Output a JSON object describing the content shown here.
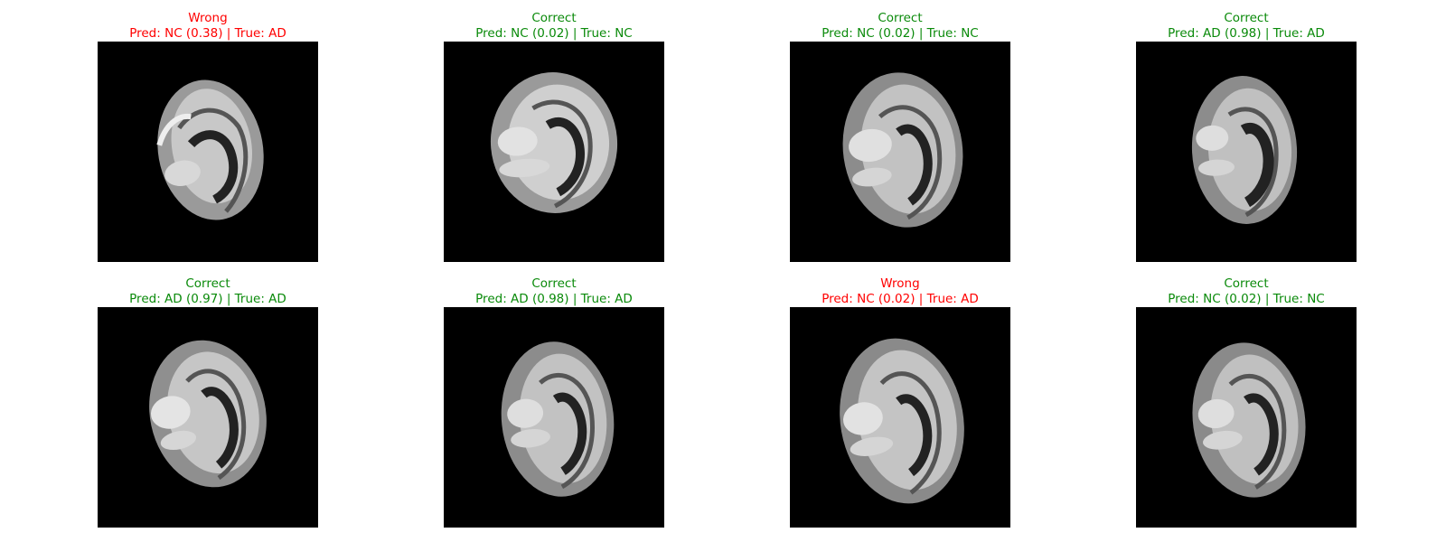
{
  "colors": {
    "correct": "#008000",
    "wrong": "#ff0000",
    "background": "#000000"
  },
  "panels": [
    {
      "status": "Wrong",
      "caption": "Pred: NC (0.38) | True: AD",
      "correct": false
    },
    {
      "status": "Correct",
      "caption": "Pred: NC (0.02) | True: NC",
      "correct": true
    },
    {
      "status": "Correct",
      "caption": "Pred: NC (0.02) | True: NC",
      "correct": true
    },
    {
      "status": "Correct",
      "caption": "Pred: AD (0.98) | True: AD",
      "correct": true
    },
    {
      "status": "Correct",
      "caption": "Pred: AD (0.97) | True: AD",
      "correct": true
    },
    {
      "status": "Correct",
      "caption": "Pred: AD (0.98) | True: AD",
      "correct": true
    },
    {
      "status": "Wrong",
      "caption": "Pred: NC (0.02) | True: AD",
      "correct": false
    },
    {
      "status": "Correct",
      "caption": "Pred: NC (0.02) | True: NC",
      "correct": true
    }
  ]
}
